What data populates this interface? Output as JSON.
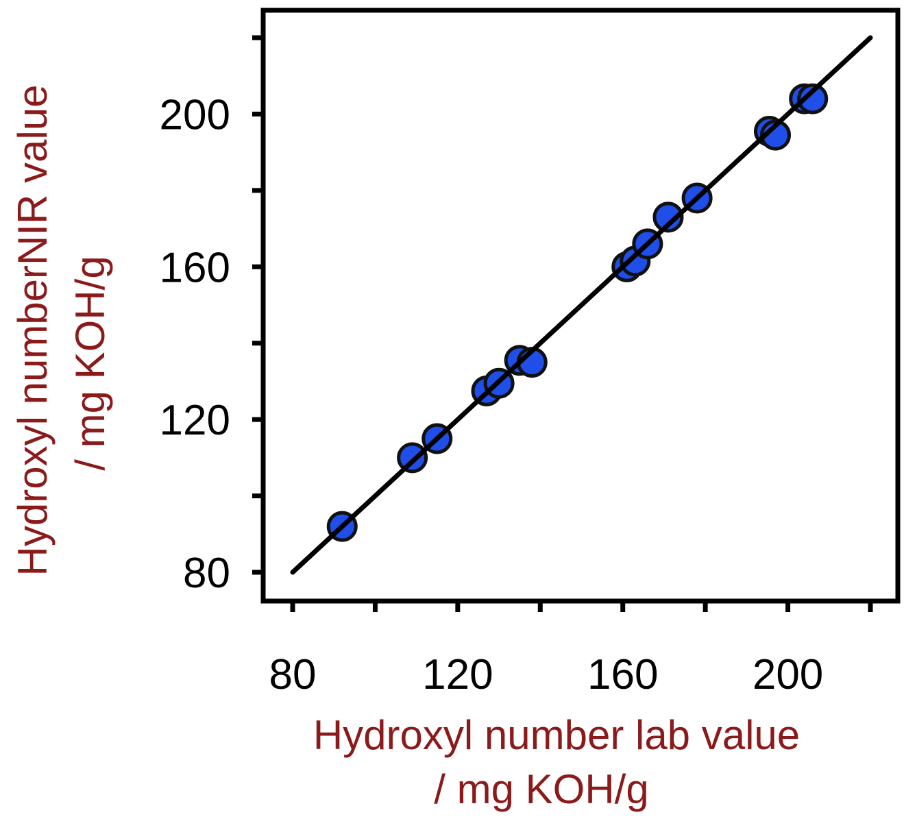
{
  "chart_data": {
    "type": "scatter",
    "xlabel_line1": "Hydroxyl number  lab value",
    "xlabel_line2": "/ mg KOH/g",
    "ylabel_line1": "Hydroxyl numberNIR value",
    "ylabel_line2": "/ mg KOH/g",
    "xlim": [
      80,
      220
    ],
    "ylim": [
      80,
      220
    ],
    "x_ticks": [
      80,
      120,
      160,
      200
    ],
    "x_tick_labels": [
      "80",
      "120",
      "160",
      "200"
    ],
    "y_ticks": [
      80,
      120,
      160,
      200
    ],
    "y_tick_labels": [
      "80",
      "120",
      "160",
      "200"
    ],
    "x_minor_ticks": [
      100,
      140,
      180,
      220
    ],
    "y_minor_ticks": [
      100,
      140,
      180,
      220
    ],
    "grid": false,
    "legend": "none",
    "fit_line": {
      "x": [
        80,
        220
      ],
      "y": [
        80,
        220
      ]
    },
    "points": [
      {
        "x": 92,
        "y": 92
      },
      {
        "x": 109,
        "y": 110
      },
      {
        "x": 115,
        "y": 115
      },
      {
        "x": 127,
        "y": 127.5
      },
      {
        "x": 130,
        "y": 129.5
      },
      {
        "x": 135,
        "y": 135.5
      },
      {
        "x": 138,
        "y": 135
      },
      {
        "x": 161,
        "y": 160
      },
      {
        "x": 163,
        "y": 161.5
      },
      {
        "x": 166,
        "y": 166
      },
      {
        "x": 171,
        "y": 173
      },
      {
        "x": 178,
        "y": 178
      },
      {
        "x": 195.5,
        "y": 195.5
      },
      {
        "x": 197,
        "y": 194.5
      },
      {
        "x": 204,
        "y": 204
      },
      {
        "x": 206,
        "y": 204
      }
    ],
    "colors": {
      "marker_fill": "#1F4FE8",
      "marker_edge": "#111111",
      "line": "#000000",
      "axis_title": "#8B1A1A"
    }
  }
}
